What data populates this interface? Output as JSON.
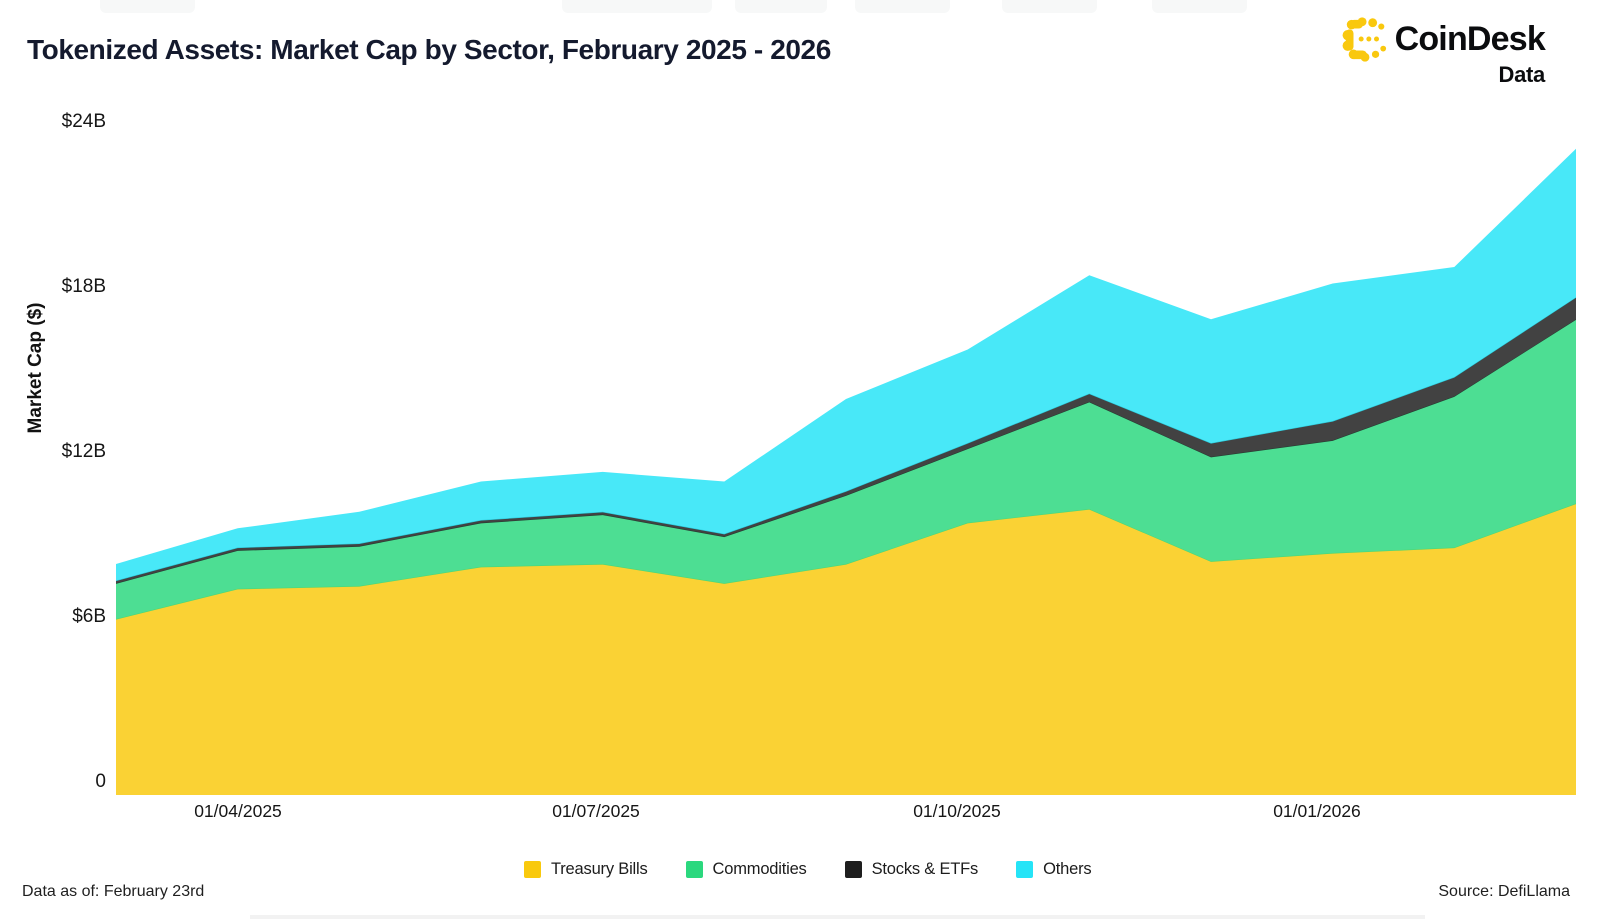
{
  "header": {
    "title": "Tokenized Assets: Market Cap by Sector, February 2025 - 2026",
    "brand": {
      "name": "CoinDesk",
      "sub": "Data",
      "logo_color": "#F9C80E"
    }
  },
  "footer": {
    "data_as_of": "Data as of: February 23rd",
    "source": "Source: DefiLlama"
  },
  "chart_data": {
    "type": "area",
    "stacked": true,
    "title": "Tokenized Assets: Market Cap by Sector, February 2025 - 2026",
    "ylabel": "Market Cap ($)",
    "xlabel": "",
    "unit": "billions USD",
    "ylim": [
      0,
      24
    ],
    "grid": false,
    "legend_position": "bottom",
    "y_ticks": [
      {
        "value": 0,
        "label": "0"
      },
      {
        "value": 6,
        "label": "$6B"
      },
      {
        "value": 12,
        "label": "$12B"
      },
      {
        "value": 18,
        "label": "$18B"
      },
      {
        "value": 24,
        "label": "$24B"
      }
    ],
    "x_ticks": [
      {
        "label": "01/04/2025",
        "point_index": 1
      },
      {
        "label": "01/07/2025",
        "point_index": 4
      },
      {
        "label": "01/10/2025",
        "point_index": 7
      },
      {
        "label": "01/01/2026",
        "point_index": 10
      }
    ],
    "x_range_note": "monthly points from late February 2025 through February 23 2026",
    "series": [
      {
        "name": "Treasury Bills",
        "color": "#F9C90D",
        "values": [
          6.4,
          7.5,
          7.6,
          8.3,
          8.4,
          7.7,
          8.4,
          9.9,
          10.4,
          8.5,
          8.8,
          9.0,
          10.6
        ]
      },
      {
        "name": "Commodities",
        "color": "#2BD87E",
        "values": [
          1.3,
          1.4,
          1.45,
          1.6,
          1.8,
          1.7,
          2.5,
          2.7,
          3.9,
          3.8,
          4.1,
          5.5,
          6.7
        ]
      },
      {
        "name": "Stocks & ETFs",
        "color": "#1E1E1E",
        "values": [
          0.1,
          0.1,
          0.1,
          0.1,
          0.1,
          0.1,
          0.15,
          0.2,
          0.3,
          0.5,
          0.7,
          0.7,
          0.8
        ]
      },
      {
        "name": "Others",
        "color": "#25E4F7",
        "values": [
          0.6,
          0.7,
          1.15,
          1.4,
          1.45,
          1.9,
          3.35,
          3.4,
          4.3,
          4.5,
          5.0,
          4.0,
          5.4
        ]
      }
    ],
    "totals": [
      8.4,
      9.7,
      10.3,
      11.4,
      11.75,
      11.4,
      14.4,
      16.2,
      18.9,
      17.3,
      18.6,
      19.2,
      23.5
    ]
  }
}
